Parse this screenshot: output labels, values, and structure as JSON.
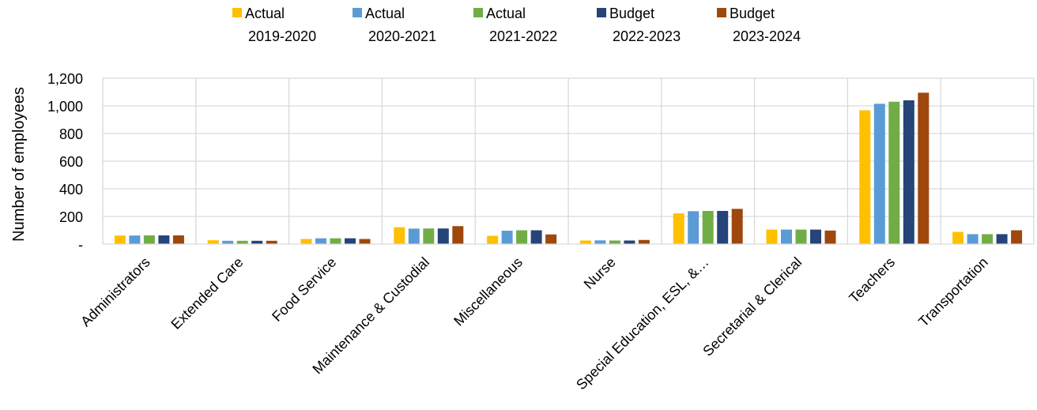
{
  "chart_data": {
    "type": "bar",
    "title": "",
    "xlabel": "",
    "ylabel": "Number of employees",
    "ylim": [
      0,
      1200
    ],
    "yticks": [
      0,
      200,
      400,
      600,
      800,
      1000,
      1200
    ],
    "ytick_labels": [
      "-",
      "200",
      "400",
      "600",
      "800",
      "1,000",
      "1,200"
    ],
    "grid": true,
    "legend_position": "top",
    "categories": [
      "Administrators",
      "Extended Care",
      "Food Service",
      "Maintenance & Custodial",
      "Miscellaneous",
      "Nurse",
      "Special Education, ESL, &…",
      "Secretarial & Clerical",
      "Teachers",
      "Transportation"
    ],
    "series": [
      {
        "name": "Actual 2019-2020",
        "legend_lines": [
          "Actual",
          "2019-2020"
        ],
        "color": "#FFC000",
        "values": [
          62,
          28,
          37,
          122,
          60,
          26,
          222,
          105,
          968,
          88
        ]
      },
      {
        "name": "Actual 2020-2021",
        "legend_lines": [
          "Actual",
          "2020-2021"
        ],
        "color": "#5B9BD5",
        "values": [
          62,
          24,
          42,
          112,
          97,
          27,
          238,
          105,
          1015,
          72
        ]
      },
      {
        "name": "Actual 2021-2022",
        "legend_lines": [
          "Actual",
          "2021-2022"
        ],
        "color": "#70AD47",
        "values": [
          63,
          24,
          42,
          113,
          100,
          26,
          240,
          105,
          1030,
          72
        ]
      },
      {
        "name": "Budget 2022-2023",
        "legend_lines": [
          "Budget",
          "2022-2023"
        ],
        "color": "#264478",
        "values": [
          63,
          24,
          42,
          113,
          100,
          26,
          240,
          105,
          1040,
          72
        ]
      },
      {
        "name": "Budget 2023-2024",
        "legend_lines": [
          "Budget",
          "2023-2024"
        ],
        "color": "#9E480E",
        "values": [
          63,
          24,
          37,
          130,
          70,
          30,
          255,
          98,
          1095,
          100
        ]
      }
    ]
  }
}
